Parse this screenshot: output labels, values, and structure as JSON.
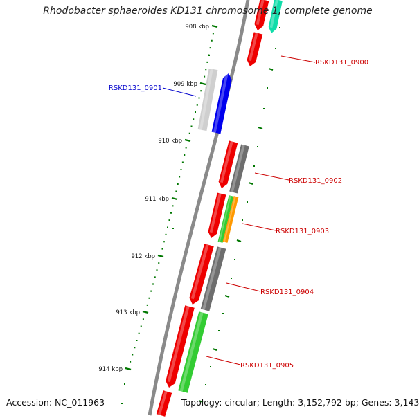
{
  "title": "Rhodobacter sphaeroides KD131 chromosome 1, complete genome",
  "accession_text": "Accession: NC_011963",
  "topology_text": "Topology: circular; Length: 3,152,792 bp; Genes: 3,143",
  "colors": {
    "red": "#ee0000",
    "gray": "#6e6e6e",
    "light_gray": "#cfcfcf",
    "blue": "#0000ee",
    "green": "#33cc33",
    "orange": "#ff9900",
    "teal": "#11ddaa",
    "tick_green": "#007700",
    "backbone": "#8a8a8a"
  },
  "kbp_ticks": [
    "908 kbp",
    "909 kbp",
    "910 kbp",
    "911 kbp",
    "912 kbp",
    "913 kbp",
    "914 kbp"
  ],
  "gene_labels": [
    {
      "text": "RSKD131_0900",
      "color": "#cc0000"
    },
    {
      "text": "RSKD131_0901",
      "color": "#0000cc"
    },
    {
      "text": "RSKD131_0902",
      "color": "#cc0000"
    },
    {
      "text": "RSKD131_0903",
      "color": "#cc0000"
    },
    {
      "text": "RSKD131_0904",
      "color": "#cc0000"
    },
    {
      "text": "RSKD131_0905",
      "color": "#cc0000"
    }
  ]
}
